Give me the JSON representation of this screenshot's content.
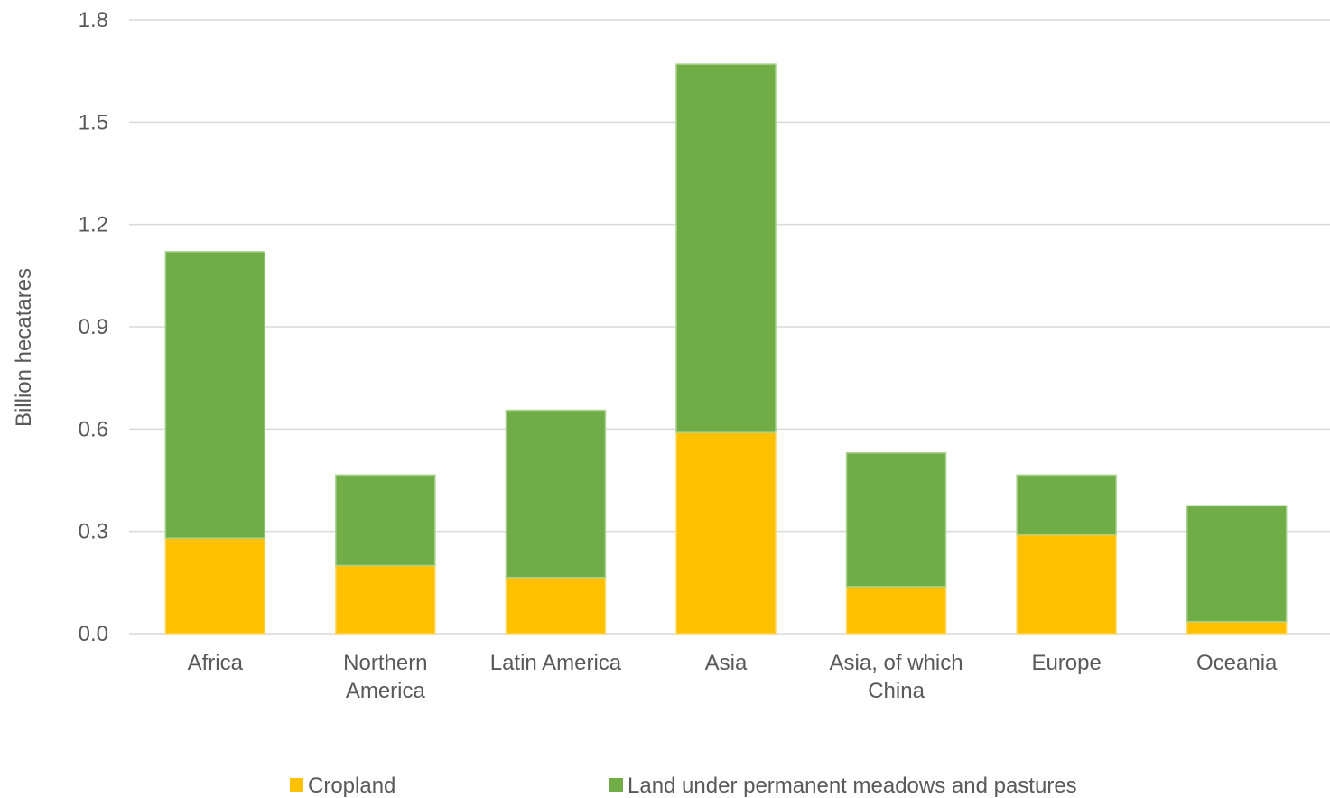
{
  "chart_data": {
    "type": "bar",
    "stacked": true,
    "title": "",
    "xlabel": "",
    "ylabel": "Billion hecatares",
    "ylim": [
      0,
      1.8
    ],
    "yticks": [
      "0.0",
      "0.3",
      "0.6",
      "0.9",
      "1.2",
      "1.5",
      "1.8"
    ],
    "grid": true,
    "legend_position": "bottom",
    "categories": [
      [
        "Africa"
      ],
      [
        "Northern",
        "America"
      ],
      [
        "Latin America"
      ],
      [
        "Asia"
      ],
      [
        "Asia, of which",
        "China"
      ],
      [
        "Europe"
      ],
      [
        "Oceania"
      ]
    ],
    "series": [
      {
        "name": "Cropland",
        "color": "#ffc000",
        "values": [
          0.28,
          0.2,
          0.165,
          0.59,
          0.138,
          0.29,
          0.035
        ]
      },
      {
        "name": "Land under permanent meadows and pastures",
        "color": "#70ad47",
        "values": [
          0.84,
          0.265,
          0.49,
          1.08,
          0.392,
          0.175,
          0.34
        ]
      }
    ]
  }
}
